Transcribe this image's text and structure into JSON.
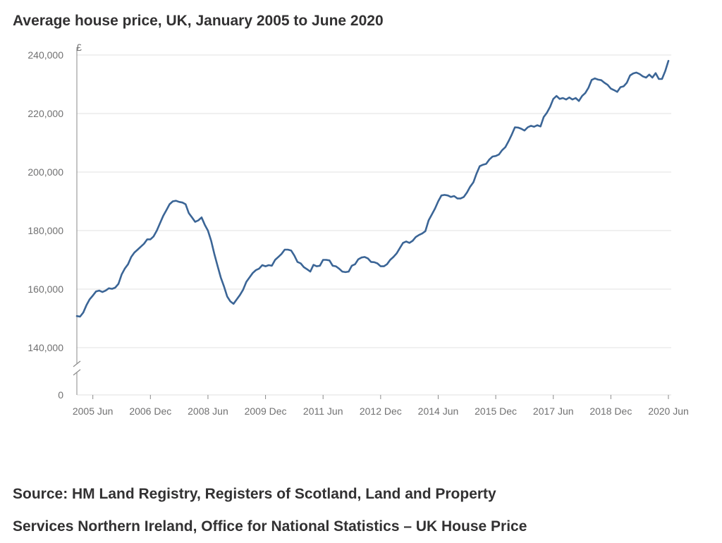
{
  "title": "Average house price, UK, January 2005 to June 2020",
  "source_line1": "Source: HM Land Registry, Registers of Scotland, Land and Property",
  "source_line2": "Services Northern Ireland, Office for National Statistics – UK House Price",
  "colors": {
    "line": "#3b6596",
    "grid": "#e1e1e1",
    "axis": "#8a8a8a",
    "text": "#707071"
  },
  "chart_data": {
    "type": "line",
    "title": "Average house price, UK, January 2005 to June 2020",
    "ylabel": "£",
    "xlabel": "",
    "axis_break": true,
    "y_zero_label": "0",
    "ylim": [
      140000,
      240000
    ],
    "yticks": [
      {
        "value": 140000,
        "label": "140,000"
      },
      {
        "value": 160000,
        "label": "160,000"
      },
      {
        "value": 180000,
        "label": "180,000"
      },
      {
        "value": 200000,
        "label": "200,000"
      },
      {
        "value": 220000,
        "label": "220,000"
      },
      {
        "value": 240000,
        "label": "240,000"
      }
    ],
    "xticks": [
      "2005 Jun",
      "2006 Dec",
      "2008 Jun",
      "2009 Dec",
      "2011 Jun",
      "2012 Dec",
      "2014 Jun",
      "2015 Dec",
      "2017 Jun",
      "2018 Dec",
      "2020 Jun"
    ],
    "x_start": "2005-01",
    "x_end": "2020-06",
    "grid": true,
    "series": [
      {
        "color": "#3b6596",
        "keypoints": [
          [
            "2005-01",
            150800
          ],
          [
            "2005-02",
            150600
          ],
          [
            "2005-03",
            152000
          ],
          [
            "2005-04",
            154500
          ],
          [
            "2005-05",
            156500
          ],
          [
            "2005-06",
            157800
          ],
          [
            "2005-07",
            159200
          ],
          [
            "2005-08",
            159500
          ],
          [
            "2005-09",
            159000
          ],
          [
            "2005-10",
            159500
          ],
          [
            "2005-11",
            160300
          ],
          [
            "2005-12",
            160100
          ],
          [
            "2006-01",
            160500
          ],
          [
            "2006-02",
            161800
          ],
          [
            "2006-03",
            165000
          ],
          [
            "2006-04",
            167000
          ],
          [
            "2006-05",
            168500
          ],
          [
            "2006-06",
            171000
          ],
          [
            "2006-07",
            172500
          ],
          [
            "2006-08",
            173500
          ],
          [
            "2006-09",
            174500
          ],
          [
            "2006-10",
            175500
          ],
          [
            "2006-11",
            177000
          ],
          [
            "2006-12",
            177000
          ],
          [
            "2007-01",
            178000
          ],
          [
            "2007-02",
            180000
          ],
          [
            "2007-03",
            182500
          ],
          [
            "2007-04",
            185000
          ],
          [
            "2007-05",
            187000
          ],
          [
            "2007-06",
            189000
          ],
          [
            "2007-07",
            190000
          ],
          [
            "2007-08",
            190200
          ],
          [
            "2007-09",
            189800
          ],
          [
            "2007-10",
            189600
          ],
          [
            "2007-11",
            189000
          ],
          [
            "2007-12",
            186000
          ],
          [
            "2008-01",
            184500
          ],
          [
            "2008-02",
            183000
          ],
          [
            "2008-03",
            183500
          ],
          [
            "2008-04",
            184500
          ],
          [
            "2008-05",
            182000
          ],
          [
            "2008-06",
            180000
          ],
          [
            "2008-07",
            176500
          ],
          [
            "2008-08",
            172000
          ],
          [
            "2008-09",
            168000
          ],
          [
            "2008-10",
            164000
          ],
          [
            "2008-11",
            161000
          ],
          [
            "2008-12",
            157500
          ],
          [
            "2009-01",
            155800
          ],
          [
            "2009-02",
            155000
          ],
          [
            "2009-03",
            156500
          ],
          [
            "2009-04",
            158000
          ],
          [
            "2009-05",
            159800
          ],
          [
            "2009-06",
            162500
          ],
          [
            "2009-07",
            164000
          ],
          [
            "2009-08",
            165500
          ],
          [
            "2009-09",
            166500
          ],
          [
            "2009-10",
            167000
          ],
          [
            "2009-11",
            168200
          ],
          [
            "2009-12",
            167800
          ],
          [
            "2010-01",
            168200
          ],
          [
            "2010-02",
            168000
          ],
          [
            "2010-03",
            170000
          ],
          [
            "2010-04",
            171000
          ],
          [
            "2010-05",
            172000
          ],
          [
            "2010-06",
            173500
          ],
          [
            "2010-07",
            173500
          ],
          [
            "2010-08",
            173200
          ],
          [
            "2010-09",
            171500
          ],
          [
            "2010-10",
            169300
          ],
          [
            "2010-11",
            168800
          ],
          [
            "2010-12",
            167500
          ],
          [
            "2011-01",
            166800
          ],
          [
            "2011-02",
            166000
          ],
          [
            "2011-03",
            168300
          ],
          [
            "2011-04",
            167800
          ],
          [
            "2011-05",
            168000
          ],
          [
            "2011-06",
            170000
          ],
          [
            "2011-07",
            170000
          ],
          [
            "2011-08",
            169800
          ],
          [
            "2011-09",
            168000
          ],
          [
            "2011-10",
            167800
          ],
          [
            "2011-11",
            167000
          ],
          [
            "2011-12",
            166000
          ],
          [
            "2012-01",
            165800
          ],
          [
            "2012-02",
            166000
          ],
          [
            "2012-03",
            168000
          ],
          [
            "2012-04",
            168500
          ],
          [
            "2012-05",
            170200
          ],
          [
            "2012-06",
            170800
          ],
          [
            "2012-07",
            171000
          ],
          [
            "2012-08",
            170500
          ],
          [
            "2012-09",
            169300
          ],
          [
            "2012-10",
            169200
          ],
          [
            "2012-11",
            168800
          ],
          [
            "2012-12",
            167800
          ],
          [
            "2013-01",
            167800
          ],
          [
            "2013-02",
            168500
          ],
          [
            "2013-03",
            170000
          ],
          [
            "2013-04",
            171000
          ],
          [
            "2013-05",
            172200
          ],
          [
            "2013-06",
            174000
          ],
          [
            "2013-07",
            175800
          ],
          [
            "2013-08",
            176300
          ],
          [
            "2013-09",
            175800
          ],
          [
            "2013-10",
            176500
          ],
          [
            "2013-11",
            177800
          ],
          [
            "2013-12",
            178500
          ],
          [
            "2014-01",
            179000
          ],
          [
            "2014-02",
            179800
          ],
          [
            "2014-03",
            183500
          ],
          [
            "2014-04",
            185500
          ],
          [
            "2014-05",
            187500
          ],
          [
            "2014-06",
            190000
          ],
          [
            "2014-07",
            192000
          ],
          [
            "2014-08",
            192200
          ],
          [
            "2014-09",
            192000
          ],
          [
            "2014-10",
            191500
          ],
          [
            "2014-11",
            191800
          ],
          [
            "2014-12",
            191000
          ],
          [
            "2015-01",
            191000
          ],
          [
            "2015-02",
            191500
          ],
          [
            "2015-03",
            193000
          ],
          [
            "2015-04",
            195000
          ],
          [
            "2015-05",
            196500
          ],
          [
            "2015-06",
            199500
          ],
          [
            "2015-07",
            202000
          ],
          [
            "2015-08",
            202500
          ],
          [
            "2015-09",
            202800
          ],
          [
            "2015-10",
            204300
          ],
          [
            "2015-11",
            205300
          ],
          [
            "2015-12",
            205500
          ],
          [
            "2016-01",
            206000
          ],
          [
            "2016-02",
            207500
          ],
          [
            "2016-03",
            208500
          ],
          [
            "2016-04",
            210500
          ],
          [
            "2016-05",
            212800
          ],
          [
            "2016-06",
            215300
          ],
          [
            "2016-07",
            215200
          ],
          [
            "2016-08",
            214800
          ],
          [
            "2016-09",
            214200
          ],
          [
            "2016-10",
            215300
          ],
          [
            "2016-11",
            215800
          ],
          [
            "2016-12",
            215500
          ],
          [
            "2017-01",
            216000
          ],
          [
            "2017-02",
            215600
          ],
          [
            "2017-03",
            218800
          ],
          [
            "2017-04",
            220300
          ],
          [
            "2017-05",
            222300
          ],
          [
            "2017-06",
            225000
          ],
          [
            "2017-07",
            226000
          ],
          [
            "2017-08",
            225000
          ],
          [
            "2017-09",
            225300
          ],
          [
            "2017-10",
            224800
          ],
          [
            "2017-11",
            225500
          ],
          [
            "2017-12",
            224800
          ],
          [
            "2018-01",
            225300
          ],
          [
            "2018-02",
            224300
          ],
          [
            "2018-03",
            226000
          ],
          [
            "2018-04",
            227000
          ],
          [
            "2018-05",
            228800
          ],
          [
            "2018-06",
            231500
          ],
          [
            "2018-07",
            232000
          ],
          [
            "2018-08",
            231600
          ],
          [
            "2018-09",
            231400
          ],
          [
            "2018-10",
            230500
          ],
          [
            "2018-11",
            229800
          ],
          [
            "2018-12",
            228500
          ],
          [
            "2019-01",
            228000
          ],
          [
            "2019-02",
            227400
          ],
          [
            "2019-03",
            229000
          ],
          [
            "2019-04",
            229300
          ],
          [
            "2019-05",
            230500
          ],
          [
            "2019-06",
            233000
          ],
          [
            "2019-07",
            233700
          ],
          [
            "2019-08",
            234000
          ],
          [
            "2019-09",
            233500
          ],
          [
            "2019-10",
            232700
          ],
          [
            "2019-11",
            232300
          ],
          [
            "2019-12",
            233300
          ],
          [
            "2020-01",
            232300
          ],
          [
            "2020-02",
            233800
          ],
          [
            "2020-03",
            231800
          ],
          [
            "2020-04",
            231800
          ],
          [
            "2020-05",
            234500
          ],
          [
            "2020-06",
            238000
          ]
        ]
      }
    ]
  }
}
